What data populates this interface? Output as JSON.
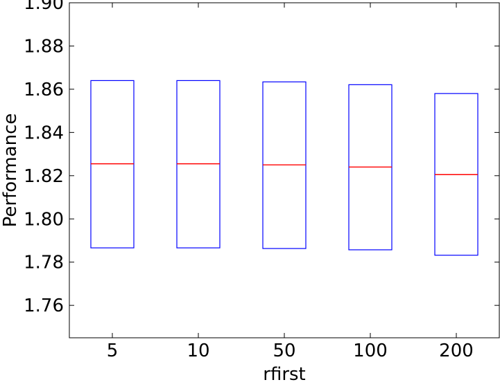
{
  "chart_data": {
    "type": "box",
    "xlabel": "rfirst",
    "ylabel": "Performance",
    "categories": [
      "5",
      "10",
      "50",
      "100",
      "200"
    ],
    "ylim": [
      1.745,
      1.9
    ],
    "yticks": [
      1.76,
      1.78,
      1.8,
      1.82,
      1.84,
      1.86,
      1.88,
      1.9
    ],
    "ytick_labels": [
      "1.76",
      "1.78",
      "1.80",
      "1.82",
      "1.84",
      "1.86",
      "1.88",
      "1.90"
    ],
    "boxes": [
      {
        "category": "5",
        "q1": 1.7866,
        "median": 1.8255,
        "q3": 1.864
      },
      {
        "category": "10",
        "q1": 1.7866,
        "median": 1.8255,
        "q3": 1.864
      },
      {
        "category": "50",
        "q1": 1.7863,
        "median": 1.825,
        "q3": 1.8634
      },
      {
        "category": "100",
        "q1": 1.7857,
        "median": 1.824,
        "q3": 1.8621
      },
      {
        "category": "200",
        "q1": 1.7832,
        "median": 1.8205,
        "q3": 1.858
      }
    ],
    "box_color": "#0000ff",
    "median_color": "#ff0000",
    "grid": false,
    "legend": "none"
  }
}
